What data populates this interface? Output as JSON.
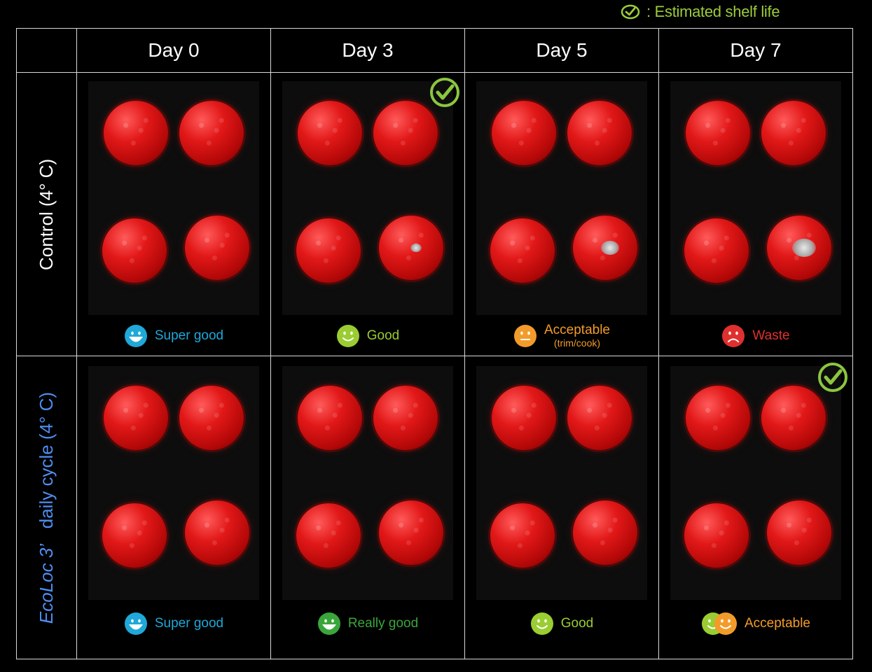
{
  "legend": {
    "label": ": Estimated shelf life",
    "color": "#9ccc3a"
  },
  "days": [
    "Day 0",
    "Day 3",
    "Day 5",
    "Day 7"
  ],
  "rows": [
    {
      "label": "Control (4° C)",
      "cells": [
        {
          "status": "Super good",
          "sub": "",
          "face": "happy",
          "colors": [
            "#1fa8d8"
          ],
          "text_color": "#1fa8d8",
          "shelf_life": false
        },
        {
          "status": "Good",
          "sub": "",
          "face": "smile",
          "colors": [
            "#9acd32"
          ],
          "text_color": "#9acd32",
          "shelf_life": true
        },
        {
          "status": "Acceptable",
          "sub": "(trim/cook)",
          "face": "neutral",
          "colors": [
            "#f39b2a"
          ],
          "text_color": "#f39b2a",
          "shelf_life": false
        },
        {
          "status": "Waste",
          "sub": "",
          "face": "sad",
          "colors": [
            "#e0302e"
          ],
          "text_color": "#e0302e",
          "shelf_life": false
        }
      ]
    },
    {
      "label_brand": "EcoLoc 3’",
      "label_rest": "daily cycle (4° C)",
      "cells": [
        {
          "status": "Super good",
          "sub": "",
          "face": "happy",
          "colors": [
            "#1fa8d8"
          ],
          "text_color": "#1fa8d8",
          "shelf_life": false
        },
        {
          "status": "Really good",
          "sub": "",
          "face": "happy",
          "colors": [
            "#3aa63a"
          ],
          "text_color": "#3aa63a",
          "shelf_life": false
        },
        {
          "status": "Good",
          "sub": "",
          "face": "smile",
          "colors": [
            "#9acd32"
          ],
          "text_color": "#9acd32",
          "shelf_life": false
        },
        {
          "status": "Acceptable",
          "sub": "",
          "face": "smile",
          "colors": [
            "#9acd32",
            "#f39b2a"
          ],
          "text_color": "#f39b2a",
          "shelf_life": true
        }
      ]
    }
  ]
}
